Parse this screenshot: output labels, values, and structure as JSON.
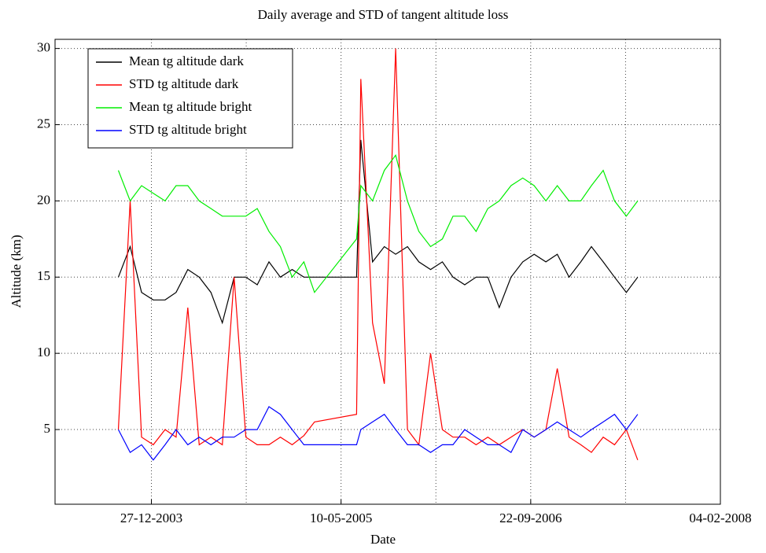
{
  "chart_data": {
    "type": "line",
    "title": "Daily average and STD of tangent altitude loss",
    "x_label": "Date",
    "y_label": "Altitude (km)",
    "x": [
      "2003-10-01",
      "2003-11-01",
      "2003-12-01",
      "2004-01-01",
      "2004-02-01",
      "2004-03-01",
      "2004-04-01",
      "2004-05-01",
      "2004-06-01",
      "2004-07-01",
      "2004-08-01",
      "2004-09-01",
      "2004-10-01",
      "2004-11-01",
      "2004-12-01",
      "2005-01-01",
      "2005-02-01",
      "2005-03-01",
      "2005-06-20",
      "2005-07-01",
      "2005-08-01",
      "2005-09-01",
      "2005-10-01",
      "2005-11-01",
      "2005-12-01",
      "2006-01-01",
      "2006-02-01",
      "2006-03-01",
      "2006-04-01",
      "2006-05-01",
      "2006-06-01",
      "2006-07-01",
      "2006-08-01",
      "2006-09-01",
      "2006-10-01",
      "2006-11-01",
      "2006-12-01",
      "2007-01-01",
      "2007-02-01",
      "2007-03-01",
      "2007-04-01",
      "2007-05-01",
      "2007-06-01",
      "2007-07-01"
    ],
    "series": [
      {
        "name": "Mean tg altitude dark",
        "color": "#000000",
        "values": [
          15,
          17,
          14,
          13.5,
          13.5,
          14,
          15.5,
          15,
          14,
          12,
          15,
          15,
          14.5,
          16,
          15,
          15.5,
          15,
          15,
          15,
          24,
          16,
          17,
          16.5,
          17,
          16,
          15.5,
          16,
          15,
          14.5,
          15,
          15,
          13,
          15,
          16,
          16.5,
          16,
          16.5,
          15,
          16,
          17,
          16,
          15,
          14,
          15
        ]
      },
      {
        "name": "STD tg altitude dark",
        "color": "#ff0000",
        "values": [
          5,
          20,
          4.5,
          4,
          5,
          4.5,
          13,
          4,
          4.5,
          4,
          15,
          4.5,
          4,
          4,
          4.5,
          4,
          4.6,
          5.5,
          6,
          28,
          12,
          8,
          30,
          5,
          4,
          10,
          5,
          4.5,
          4.5,
          4,
          4.5,
          4,
          4.5,
          5,
          4.5,
          5,
          9,
          4.5,
          4,
          3.5,
          4.5,
          4,
          5,
          3
        ]
      },
      {
        "name": "Mean tg altitude bright",
        "color": "#00ee00",
        "values": [
          22,
          20,
          21,
          20.5,
          20,
          21,
          21,
          20,
          19.5,
          19,
          19,
          19,
          19.5,
          18,
          17,
          15,
          16,
          14,
          17.5,
          21,
          20,
          22,
          23,
          20,
          18,
          17,
          17.5,
          19,
          19,
          18,
          19.5,
          20,
          21,
          21.5,
          21,
          20,
          21,
          20,
          20,
          21,
          22,
          20,
          19,
          20
        ]
      },
      {
        "name": "STD tg altitude bright",
        "color": "#0000ff",
        "values": [
          5,
          3.5,
          4,
          3,
          4,
          5,
          4,
          4.5,
          4,
          4.5,
          4.5,
          5,
          5,
          6.5,
          6,
          5,
          4,
          4,
          4,
          5,
          5.5,
          6,
          5,
          4,
          4,
          3.5,
          4,
          4,
          5,
          4.5,
          4,
          4,
          3.5,
          5,
          4.5,
          5,
          5.5,
          5,
          4.5,
          5,
          5.5,
          6,
          5,
          6
        ]
      }
    ],
    "xlim": [
      "2003-04-17",
      "2008-02-04"
    ],
    "xticks": [
      {
        "value": "2003-12-27",
        "label": "27-12-2003"
      },
      {
        "value": "2005-05-10",
        "label": "10-05-2005"
      },
      {
        "value": "2006-09-22",
        "label": "22-09-2006"
      },
      {
        "value": "2008-02-04",
        "label": "04-02-2008"
      }
    ],
    "ylim": [
      0.1,
      30.6
    ],
    "yticks": [
      5,
      10,
      15,
      20,
      25,
      30
    ],
    "grid": true,
    "legend": "upper-left"
  }
}
